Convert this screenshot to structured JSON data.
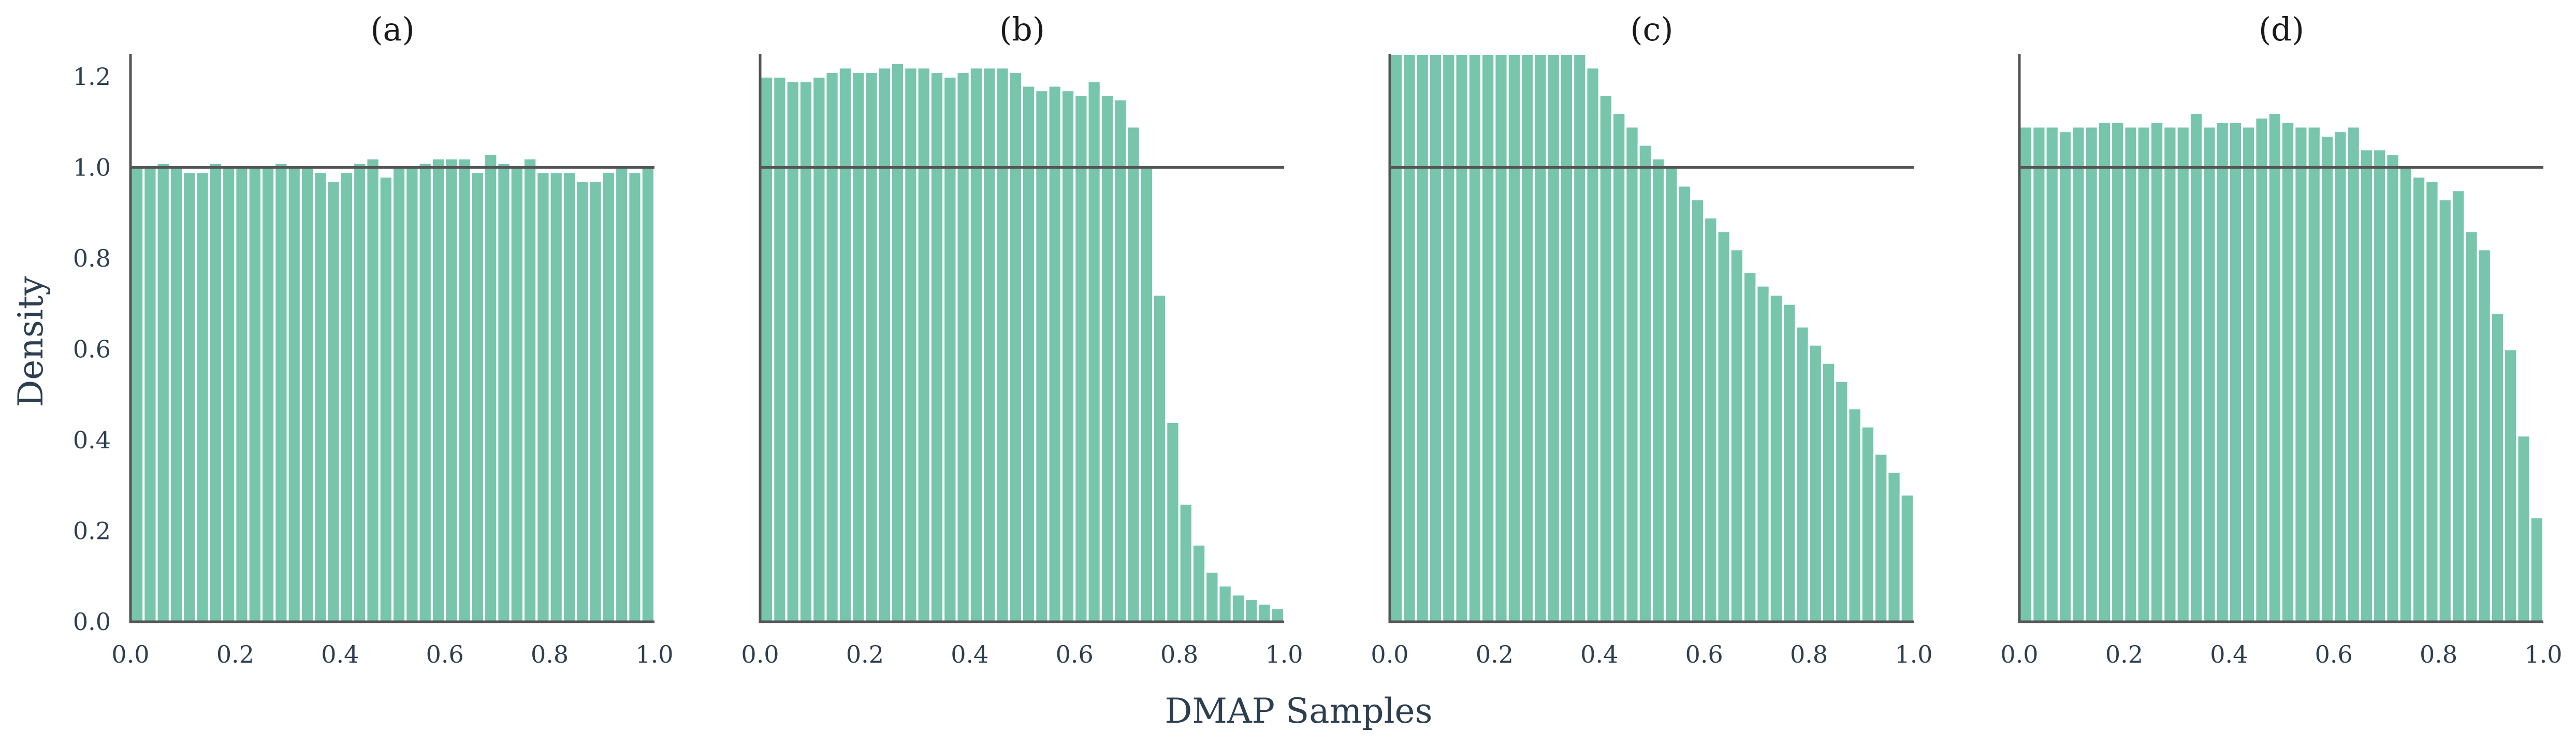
{
  "figure": {
    "xlabel": "DMAP Samples",
    "ylabel": "Density",
    "bar_color": "#77c5aa"
  },
  "chart_data": [
    {
      "type": "bar",
      "title": "(a)",
      "bins": 40,
      "xlim": [
        0,
        1
      ],
      "ylim": [
        0,
        1.25
      ],
      "xticks": [
        "0.0",
        "0.2",
        "0.4",
        "0.6",
        "0.8",
        "1.0"
      ],
      "yticks": [
        "0.0",
        "0.2",
        "0.4",
        "0.6",
        "0.8",
        "1.0",
        "1.2"
      ],
      "reference_line": 1.0,
      "values": [
        1.0,
        1.0,
        1.01,
        1.0,
        0.99,
        0.99,
        1.01,
        1.0,
        1.0,
        1.0,
        1.0,
        1.01,
        1.0,
        1.0,
        0.99,
        0.97,
        0.99,
        1.01,
        1.02,
        0.98,
        1.0,
        1.0,
        1.01,
        1.02,
        1.02,
        1.02,
        0.99,
        1.03,
        1.01,
        1.0,
        1.02,
        0.99,
        0.99,
        0.99,
        0.97,
        0.97,
        0.99,
        1.0,
        0.99,
        1.0
      ]
    },
    {
      "type": "bar",
      "title": "(b)",
      "bins": 40,
      "xlim": [
        0,
        1
      ],
      "ylim": [
        0,
        1.25
      ],
      "xticks": [
        "0.0",
        "0.2",
        "0.4",
        "0.6",
        "0.8",
        "1.0"
      ],
      "yticks": [],
      "reference_line": 1.0,
      "values": [
        1.2,
        1.2,
        1.19,
        1.19,
        1.2,
        1.21,
        1.22,
        1.21,
        1.21,
        1.22,
        1.23,
        1.22,
        1.22,
        1.21,
        1.2,
        1.21,
        1.22,
        1.22,
        1.22,
        1.21,
        1.18,
        1.17,
        1.18,
        1.17,
        1.16,
        1.19,
        1.16,
        1.15,
        1.09,
        1.0,
        0.72,
        0.44,
        0.26,
        0.17,
        0.11,
        0.08,
        0.06,
        0.05,
        0.04,
        0.03
      ]
    },
    {
      "type": "bar",
      "title": "(c)",
      "bins": 40,
      "xlim": [
        0,
        1
      ],
      "ylim": [
        0,
        1.25
      ],
      "xticks": [
        "0.0",
        "0.2",
        "0.4",
        "0.6",
        "0.8",
        "1.0"
      ],
      "yticks": [],
      "reference_line": 1.0,
      "values": [
        1.25,
        1.25,
        1.25,
        1.25,
        1.25,
        1.25,
        1.25,
        1.25,
        1.25,
        1.25,
        1.25,
        1.25,
        1.25,
        1.25,
        1.25,
        1.22,
        1.16,
        1.12,
        1.09,
        1.05,
        1.02,
        1.0,
        0.96,
        0.93,
        0.89,
        0.86,
        0.82,
        0.77,
        0.74,
        0.72,
        0.7,
        0.65,
        0.61,
        0.57,
        0.53,
        0.47,
        0.43,
        0.37,
        0.33,
        0.28
      ]
    },
    {
      "type": "bar",
      "title": "(d)",
      "bins": 40,
      "xlim": [
        0,
        1
      ],
      "ylim": [
        0,
        1.25
      ],
      "xticks": [
        "0.0",
        "0.2",
        "0.4",
        "0.6",
        "0.8",
        "1.0"
      ],
      "yticks": [],
      "reference_line": 1.0,
      "values": [
        1.09,
        1.09,
        1.09,
        1.08,
        1.09,
        1.09,
        1.1,
        1.1,
        1.09,
        1.09,
        1.1,
        1.09,
        1.09,
        1.12,
        1.09,
        1.1,
        1.1,
        1.09,
        1.11,
        1.12,
        1.1,
        1.09,
        1.09,
        1.07,
        1.08,
        1.09,
        1.04,
        1.04,
        1.03,
        1.0,
        0.98,
        0.97,
        0.93,
        0.95,
        0.86,
        0.82,
        0.68,
        0.6,
        0.41,
        0.23
      ]
    }
  ]
}
